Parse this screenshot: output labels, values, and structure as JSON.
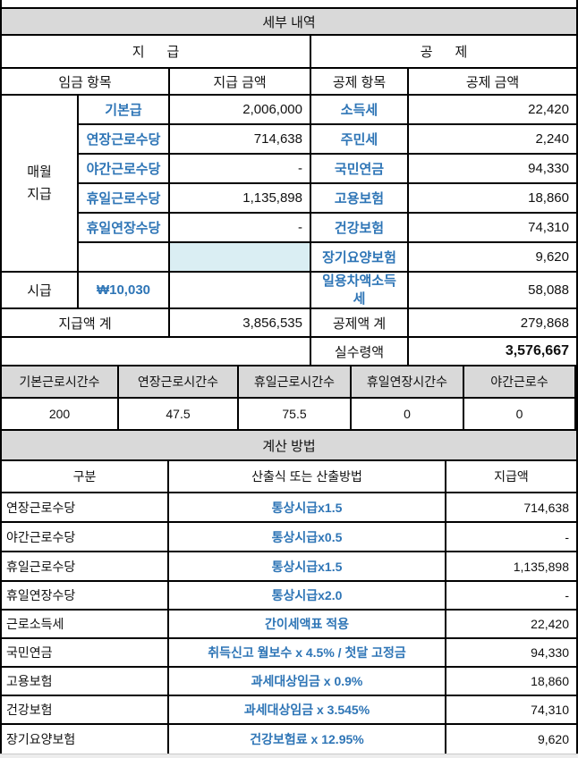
{
  "colors": {
    "gridline": "#000000",
    "section_header_fill": "#D9D9D9",
    "highlight_cell_fill": "#DAEEF3",
    "accent_text": "#2E75B6",
    "body_text": "#111111",
    "bottom_strip_fill": "#E8E8E8"
  },
  "detail": {
    "title": "세부 내역",
    "pay_group_header": "지      급",
    "deduction_group_header": "공      제",
    "columns": {
      "pay_item": "임금 항목",
      "pay_amount": "지급 금액",
      "deduction_item": "공제 항목",
      "deduction_amount": "공제 금액"
    },
    "monthly_label": "매월\n지급",
    "pay_rows": [
      {
        "item": "기본급",
        "amount": "2,006,000"
      },
      {
        "item": "연장근로수당",
        "amount": "714,638"
      },
      {
        "item": "야간근로수당",
        "amount": "-"
      },
      {
        "item": "휴일근로수당",
        "amount": "1,135,898"
      },
      {
        "item": "휴일연장수당",
        "amount": "-"
      },
      {
        "item": "",
        "amount": ""
      }
    ],
    "deduction_rows": [
      {
        "item": "소득세",
        "amount": "22,420"
      },
      {
        "item": "주민세",
        "amount": "2,240"
      },
      {
        "item": "국민연금",
        "amount": "94,330"
      },
      {
        "item": "고용보험",
        "amount": "18,860"
      },
      {
        "item": "건강보험",
        "amount": "74,310"
      },
      {
        "item": "장기요양보험",
        "amount": "9,620"
      }
    ],
    "hourly_wage": {
      "label": "시급",
      "value": "₩10,030"
    },
    "daily_diff_tax": {
      "item": "일용차액소득세",
      "amount": "58,088"
    },
    "pay_total": {
      "label": "지급액 계",
      "amount": "3,856,535"
    },
    "deduction_total": {
      "label": "공제액 계",
      "amount": "279,868"
    },
    "net_pay": {
      "label": "실수령액",
      "amount": "3,576,667"
    }
  },
  "hours": {
    "headers": [
      "기본근로시간수",
      "연장근로시간수",
      "휴일근로시간수",
      "휴일연장시간수",
      "야간근로수"
    ],
    "values": [
      "200",
      "47.5",
      "75.5",
      "0",
      "0"
    ]
  },
  "calc": {
    "title": "계산 방법",
    "columns": [
      "구분",
      "산출식 또는 산출방법",
      "지급액"
    ],
    "rows": [
      {
        "name": "연장근로수당",
        "formula": "통상시급x1.5",
        "amount": "714,638"
      },
      {
        "name": "야간근로수당",
        "formula": "통상시급x0.5",
        "amount": "-"
      },
      {
        "name": "휴일근로수당",
        "formula": "통상시급x1.5",
        "amount": "1,135,898"
      },
      {
        "name": "휴일연장수당",
        "formula": "통상시급x2.0",
        "amount": "-"
      },
      {
        "name": "근로소득세",
        "formula": "간이세액표 적용",
        "amount": "22,420"
      },
      {
        "name": "국민연금",
        "formula": "취득신고 월보수 x 4.5% / 첫달 고정금",
        "amount": "94,330"
      },
      {
        "name": "고용보험",
        "formula": "과세대상임금 x 0.9%",
        "amount": "18,860"
      },
      {
        "name": "건강보험",
        "formula": "과세대상임금 x 3.545%",
        "amount": "74,310"
      },
      {
        "name": "장기요양보험",
        "formula": "건강보험료 x 12.95%",
        "amount": "9,620"
      }
    ]
  }
}
